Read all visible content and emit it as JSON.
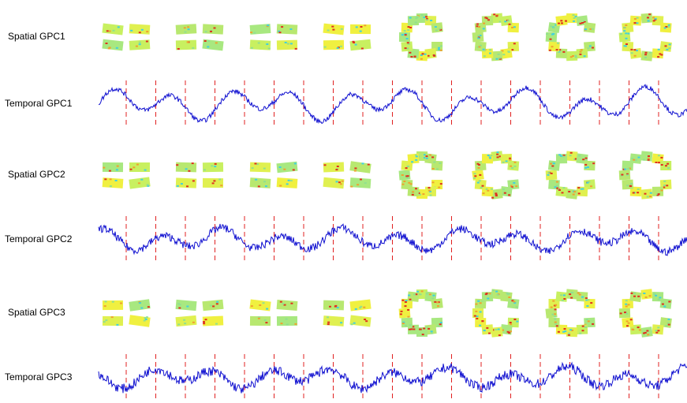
{
  "rows": [
    {
      "label": "Spatial GPC1"
    },
    {
      "label": "Temporal GPC1"
    },
    {
      "label": "Spatial GPC2"
    },
    {
      "label": "Temporal GPC2"
    },
    {
      "label": "Spatial GPC3"
    },
    {
      "label": "Temporal GPC3"
    }
  ]
}
